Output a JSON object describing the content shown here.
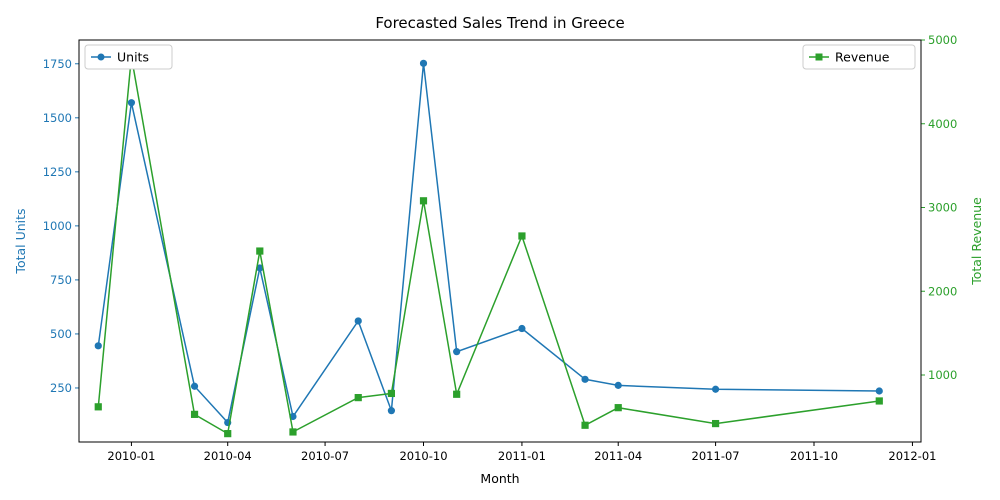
{
  "chart_data": {
    "type": "line",
    "title": "Forecasted Sales Trend in Greece",
    "xlabel": "Month",
    "ylabel_left": "Total Units",
    "ylabel_right": "Total Revenue",
    "x_ticks": [
      "2010-01",
      "2010-04",
      "2010-07",
      "2010-10",
      "2011-01",
      "2011-04",
      "2011-07",
      "2011-10",
      "2012-01"
    ],
    "y_left_ticks": [
      "250",
      "500",
      "750",
      "1000",
      "1250",
      "1500",
      "1750"
    ],
    "y_right_ticks": [
      "1000",
      "2000",
      "3000",
      "4000",
      "5000"
    ],
    "y_left_range": [
      0,
      1860
    ],
    "y_right_range": [
      200,
      5000
    ],
    "grid": false,
    "colors": {
      "units": "#1f77b4",
      "revenue": "#2ca02c"
    },
    "series": [
      {
        "name": "Units",
        "axis": "left",
        "marker": "circle",
        "x": [
          "2009-12-01",
          "2010-01-01",
          "2010-03-01",
          "2010-04-01",
          "2010-05-01",
          "2010-06-01",
          "2010-08-01",
          "2010-09-01",
          "2010-10-01",
          "2010-11-01",
          "2011-01-01",
          "2011-03-01",
          "2011-04-01",
          "2011-07-01",
          "2011-12-01"
        ],
        "values": [
          445,
          1570,
          258,
          90,
          805,
          118,
          560,
          145,
          1752,
          418,
          525,
          290,
          262,
          244,
          236
        ]
      },
      {
        "name": "Revenue",
        "axis": "right",
        "marker": "square",
        "x": [
          "2009-12-01",
          "2010-01-01",
          "2010-03-01",
          "2010-04-01",
          "2010-05-01",
          "2010-06-01",
          "2010-08-01",
          "2010-09-01",
          "2010-10-01",
          "2010-11-01",
          "2011-01-01",
          "2011-03-01",
          "2011-04-01",
          "2011-07-01",
          "2011-12-01"
        ],
        "values": [
          620,
          4800,
          530,
          300,
          2480,
          320,
          730,
          780,
          3080,
          770,
          2660,
          400,
          610,
          420,
          690
        ]
      }
    ],
    "legends": [
      {
        "position": "top-left",
        "label": "Units"
      },
      {
        "position": "top-right",
        "label": "Revenue"
      }
    ]
  }
}
